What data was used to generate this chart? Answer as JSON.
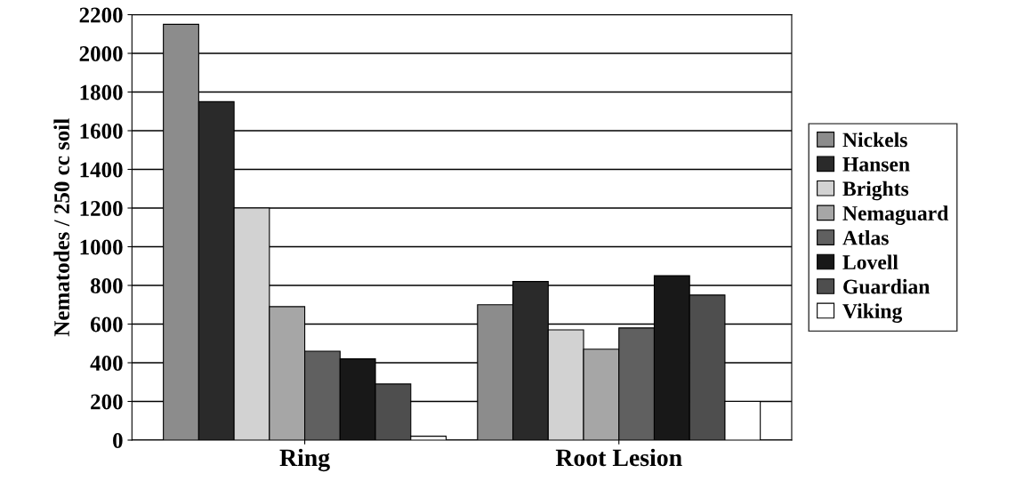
{
  "chart_data": {
    "type": "bar",
    "ylabel": "Nematodes / 250 cc soil",
    "categories": [
      "Ring",
      "Root Lesion"
    ],
    "series": [
      {
        "name": "Nickels",
        "color": "#8c8c8c",
        "values": [
          2150,
          700
        ]
      },
      {
        "name": "Hansen",
        "color": "#2a2a2a",
        "values": [
          1750,
          820
        ]
      },
      {
        "name": "Brights",
        "color": "#d2d2d2",
        "values": [
          1200,
          570
        ]
      },
      {
        "name": "Nemaguard",
        "color": "#a6a6a6",
        "values": [
          690,
          470
        ]
      },
      {
        "name": "Atlas",
        "color": "#606060",
        "values": [
          460,
          580
        ]
      },
      {
        "name": "Lovell",
        "color": "#181818",
        "values": [
          420,
          850
        ]
      },
      {
        "name": "Guardian",
        "color": "#4e4e4e",
        "values": [
          290,
          750
        ]
      },
      {
        "name": "Viking",
        "color": "#ffffff",
        "values": [
          20,
          200
        ]
      }
    ],
    "ylim": [
      0,
      2200
    ],
    "yticks": [
      0,
      200,
      400,
      600,
      800,
      1000,
      1200,
      1400,
      1600,
      1800,
      2000,
      2200
    ],
    "grid": "y",
    "legend": "right"
  }
}
